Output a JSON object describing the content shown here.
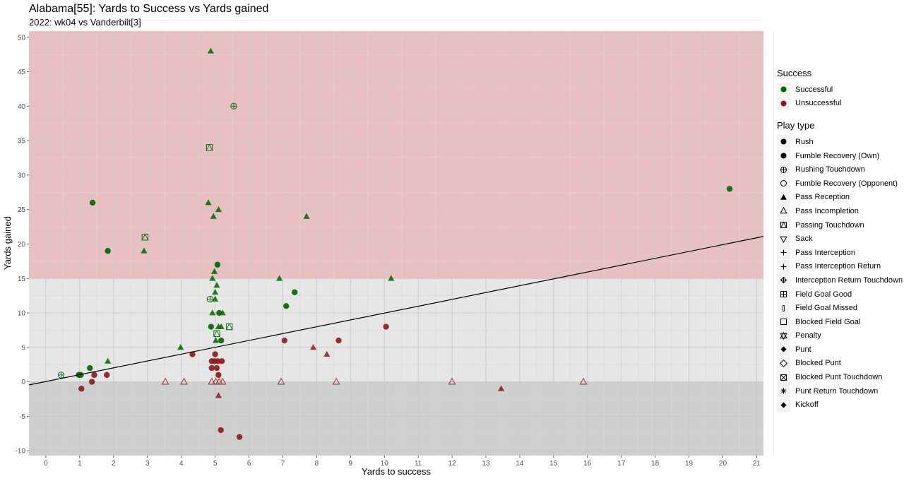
{
  "chart_data": {
    "type": "scatter",
    "title": "Alabama[55]: Yards to Success vs Yards gained",
    "subtitle": "2022: wk04 vs Vanderbilt[3]",
    "xlabel": "Yards to success",
    "ylabel": "Yards gained",
    "xlim": [
      -0.5,
      21.2
    ],
    "ylim": [
      -10.7,
      50.9
    ],
    "x_ticks": [
      0,
      1,
      2,
      3,
      4,
      5,
      6,
      7,
      8,
      9,
      10,
      11,
      12,
      13,
      14,
      15,
      16,
      17,
      18,
      19,
      20,
      21
    ],
    "y_ticks": [
      -10,
      -5,
      0,
      5,
      10,
      15,
      20,
      25,
      30,
      35,
      40,
      45,
      50
    ],
    "grid": true,
    "bands": [
      {
        "from": 15,
        "to": 50.9,
        "color": "#e8c0c2"
      },
      {
        "from": 0,
        "to": 15,
        "color": "#e6e6e6"
      },
      {
        "from": -10.7,
        "to": 0,
        "color": "#cfcfcf"
      }
    ],
    "trend_line": {
      "x": [
        -0.5,
        21.2
      ],
      "y": [
        -0.45,
        21.1
      ]
    },
    "colors": {
      "Successful": "#006400",
      "Unsuccessful": "#8b1a1a"
    },
    "points": [
      {
        "x": 4.87,
        "y": 48,
        "shape": "tri",
        "success": "Successful"
      },
      {
        "x": 5.55,
        "y": 40,
        "shape": "circleplus",
        "success": "Successful"
      },
      {
        "x": 4.83,
        "y": 34,
        "shape": "boxtri",
        "success": "Successful"
      },
      {
        "x": 20.2,
        "y": 28,
        "shape": "circle",
        "success": "Successful"
      },
      {
        "x": 1.38,
        "y": 26,
        "shape": "circle",
        "success": "Successful"
      },
      {
        "x": 4.8,
        "y": 26,
        "shape": "tri",
        "success": "Successful"
      },
      {
        "x": 5.1,
        "y": 25,
        "shape": "tri",
        "success": "Successful"
      },
      {
        "x": 4.95,
        "y": 24,
        "shape": "tri",
        "success": "Successful"
      },
      {
        "x": 7.7,
        "y": 24,
        "shape": "tri",
        "success": "Successful"
      },
      {
        "x": 2.93,
        "y": 21,
        "shape": "boxtri",
        "success": "Successful"
      },
      {
        "x": 2.9,
        "y": 19,
        "shape": "tri",
        "success": "Successful"
      },
      {
        "x": 1.83,
        "y": 19,
        "shape": "circle",
        "success": "Successful"
      },
      {
        "x": 5.07,
        "y": 17,
        "shape": "circle",
        "success": "Successful"
      },
      {
        "x": 4.98,
        "y": 16,
        "shape": "tri",
        "success": "Successful"
      },
      {
        "x": 4.92,
        "y": 15,
        "shape": "tri",
        "success": "Successful"
      },
      {
        "x": 6.9,
        "y": 15,
        "shape": "tri",
        "success": "Successful"
      },
      {
        "x": 10.2,
        "y": 15,
        "shape": "tri",
        "success": "Successful"
      },
      {
        "x": 5.05,
        "y": 14,
        "shape": "tri",
        "success": "Successful"
      },
      {
        "x": 5.0,
        "y": 13,
        "shape": "tri",
        "success": "Successful"
      },
      {
        "x": 7.35,
        "y": 13,
        "shape": "circle",
        "success": "Successful"
      },
      {
        "x": 4.85,
        "y": 12,
        "shape": "circleplus",
        "success": "Successful"
      },
      {
        "x": 5.0,
        "y": 12,
        "shape": "tri",
        "success": "Successful"
      },
      {
        "x": 7.1,
        "y": 11,
        "shape": "circle",
        "success": "Successful"
      },
      {
        "x": 4.92,
        "y": 10,
        "shape": "tri",
        "success": "Successful"
      },
      {
        "x": 5.12,
        "y": 10,
        "shape": "circle",
        "success": "Successful"
      },
      {
        "x": 5.22,
        "y": 10,
        "shape": "tri",
        "success": "Successful"
      },
      {
        "x": 4.88,
        "y": 8,
        "shape": "circle",
        "success": "Successful"
      },
      {
        "x": 5.1,
        "y": 8,
        "shape": "tri",
        "success": "Successful"
      },
      {
        "x": 5.18,
        "y": 8,
        "shape": "tri",
        "success": "Successful"
      },
      {
        "x": 5.42,
        "y": 8,
        "shape": "boxtri",
        "success": "Successful"
      },
      {
        "x": 5.05,
        "y": 7,
        "shape": "boxtri",
        "success": "Successful"
      },
      {
        "x": 5.02,
        "y": 6,
        "shape": "tri",
        "success": "Successful"
      },
      {
        "x": 5.18,
        "y": 6,
        "shape": "circle",
        "success": "Successful"
      },
      {
        "x": 3.98,
        "y": 5,
        "shape": "tri",
        "success": "Successful"
      },
      {
        "x": 1.83,
        "y": 3,
        "shape": "tri",
        "success": "Successful"
      },
      {
        "x": 1.3,
        "y": 2,
        "shape": "circle",
        "success": "Successful"
      },
      {
        "x": 0.97,
        "y": 1,
        "shape": "circle",
        "success": "Successful"
      },
      {
        "x": 1.03,
        "y": 1,
        "shape": "circle",
        "success": "Successful"
      },
      {
        "x": 0.45,
        "y": 1,
        "shape": "circleplus",
        "success": "Successful"
      },
      {
        "x": 10.05,
        "y": 8,
        "shape": "circle",
        "success": "Unsuccessful"
      },
      {
        "x": 7.05,
        "y": 6,
        "shape": "circle",
        "success": "Unsuccessful"
      },
      {
        "x": 8.65,
        "y": 6,
        "shape": "circle",
        "success": "Unsuccessful"
      },
      {
        "x": 7.9,
        "y": 5,
        "shape": "tri",
        "success": "Unsuccessful"
      },
      {
        "x": 4.33,
        "y": 4,
        "shape": "circle",
        "success": "Unsuccessful"
      },
      {
        "x": 5.0,
        "y": 4,
        "shape": "circle",
        "success": "Unsuccessful"
      },
      {
        "x": 8.3,
        "y": 4,
        "shape": "tri",
        "success": "Unsuccessful"
      },
      {
        "x": 4.9,
        "y": 3,
        "shape": "circle",
        "success": "Unsuccessful"
      },
      {
        "x": 4.98,
        "y": 3,
        "shape": "circle",
        "success": "Unsuccessful"
      },
      {
        "x": 5.08,
        "y": 3,
        "shape": "circle",
        "success": "Unsuccessful"
      },
      {
        "x": 5.2,
        "y": 3,
        "shape": "circle",
        "success": "Unsuccessful"
      },
      {
        "x": 4.9,
        "y": 2,
        "shape": "circle",
        "success": "Unsuccessful"
      },
      {
        "x": 5.05,
        "y": 2,
        "shape": "circle",
        "success": "Unsuccessful"
      },
      {
        "x": 5.1,
        "y": 1,
        "shape": "circle",
        "success": "Unsuccessful"
      },
      {
        "x": 1.43,
        "y": 1,
        "shape": "circle",
        "success": "Unsuccessful"
      },
      {
        "x": 1.8,
        "y": 1,
        "shape": "circle",
        "success": "Unsuccessful"
      },
      {
        "x": 1.36,
        "y": 0,
        "shape": "circle",
        "success": "Unsuccessful"
      },
      {
        "x": 1.05,
        "y": -1,
        "shape": "circle",
        "success": "Unsuccessful"
      },
      {
        "x": 3.53,
        "y": 0,
        "shape": "opentri",
        "success": "Unsuccessful"
      },
      {
        "x": 4.08,
        "y": 0,
        "shape": "opentri",
        "success": "Unsuccessful"
      },
      {
        "x": 4.9,
        "y": 0,
        "shape": "opentri",
        "success": "Unsuccessful"
      },
      {
        "x": 5.02,
        "y": 0,
        "shape": "opentri",
        "success": "Unsuccessful"
      },
      {
        "x": 5.12,
        "y": 0,
        "shape": "opentri",
        "success": "Unsuccessful"
      },
      {
        "x": 5.22,
        "y": 0,
        "shape": "opentri",
        "success": "Unsuccessful"
      },
      {
        "x": 6.95,
        "y": 0,
        "shape": "opentri",
        "success": "Unsuccessful"
      },
      {
        "x": 8.58,
        "y": 0,
        "shape": "opentri",
        "success": "Unsuccessful"
      },
      {
        "x": 12.0,
        "y": 0,
        "shape": "opentri",
        "success": "Unsuccessful"
      },
      {
        "x": 15.88,
        "y": 0,
        "shape": "opentri",
        "success": "Unsuccessful"
      },
      {
        "x": 5.1,
        "y": -2,
        "shape": "tri",
        "success": "Unsuccessful"
      },
      {
        "x": 13.45,
        "y": -1,
        "shape": "tri",
        "success": "Unsuccessful"
      },
      {
        "x": 5.17,
        "y": -7,
        "shape": "circle",
        "success": "Unsuccessful"
      },
      {
        "x": 5.72,
        "y": -8,
        "shape": "circle",
        "success": "Unsuccessful"
      }
    ]
  },
  "legend": {
    "success_title": "Success",
    "success_items": [
      {
        "label": "Successful",
        "color": "#006400"
      },
      {
        "label": "Unsuccessful",
        "color": "#8b1a1a"
      }
    ],
    "type_title": "Play type",
    "type_items": [
      {
        "label": "Rush",
        "shape": "circle"
      },
      {
        "label": "Fumble Recovery (Own)",
        "shape": "circle"
      },
      {
        "label": "Rushing Touchdown",
        "shape": "circleplus"
      },
      {
        "label": "Fumble Recovery (Opponent)",
        "shape": "opencircle"
      },
      {
        "label": "Pass Reception",
        "shape": "tri"
      },
      {
        "label": "Pass Incompletion",
        "shape": "opentri"
      },
      {
        "label": "Passing Touchdown",
        "shape": "boxtri"
      },
      {
        "label": "Sack",
        "shape": "downtri"
      },
      {
        "label": "Pass Interception",
        "shape": "plus"
      },
      {
        "label": "Pass Interception Return",
        "shape": "plus"
      },
      {
        "label": "Interception Return Touchdown",
        "shape": "diamondplus"
      },
      {
        "label": "Field Goal Good",
        "shape": "boxplus"
      },
      {
        "label": "Field Goal Missed",
        "shape": "bar"
      },
      {
        "label": "Blocked Field Goal",
        "shape": "square"
      },
      {
        "label": "Penalty",
        "shape": "star6"
      },
      {
        "label": "Punt",
        "shape": "diamond"
      },
      {
        "label": "Blocked Punt",
        "shape": "opendiamond"
      },
      {
        "label": "Blocked Punt Touchdown",
        "shape": "boxx"
      },
      {
        "label": "Punt Return Touchdown",
        "shape": "asterisk"
      },
      {
        "label": "Kickoff",
        "shape": "diamond"
      }
    ]
  }
}
